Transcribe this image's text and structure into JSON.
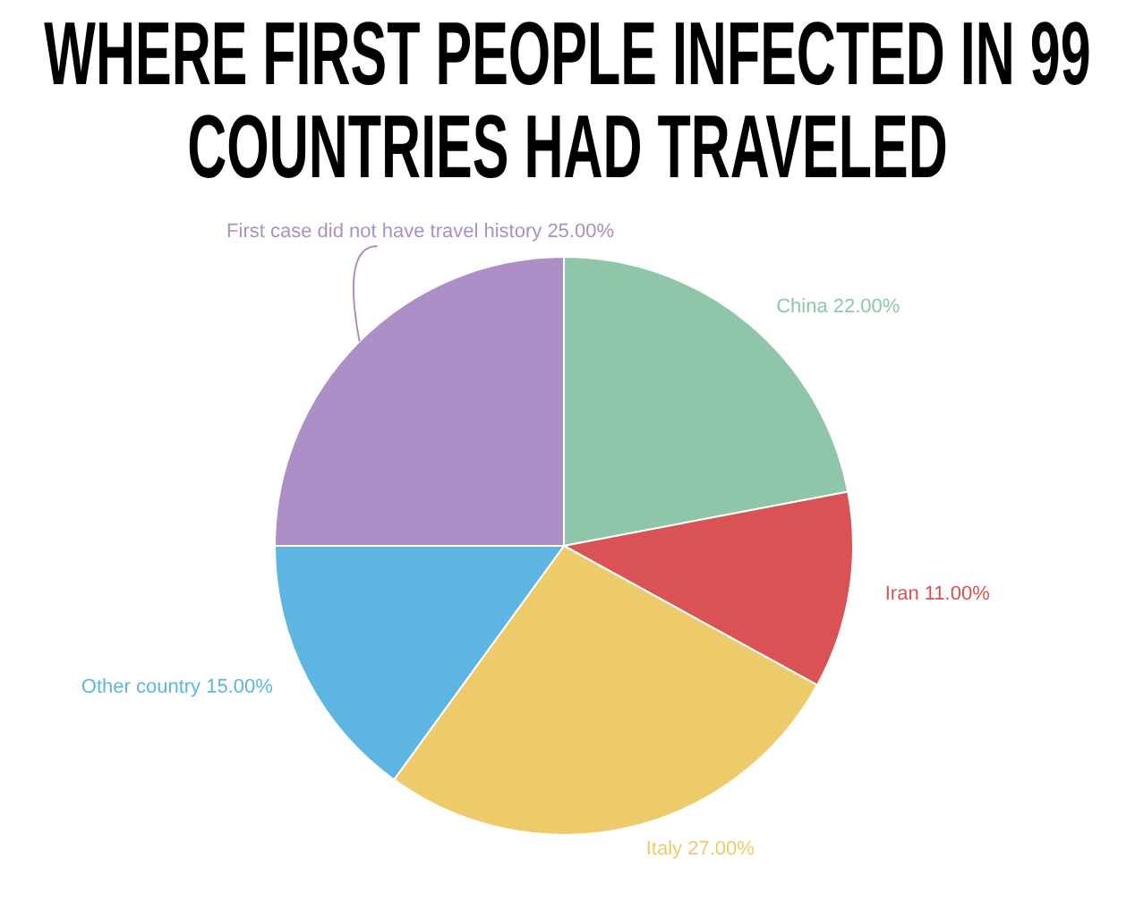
{
  "chart_data": {
    "type": "pie",
    "title": "WHERE FIRST PEOPLE INFECTED IN 99 COUNTRIES HAD TRAVELED",
    "categories": [
      "China",
      "Iran",
      "Italy",
      "Other country",
      "First case did not have travel history"
    ],
    "values": [
      22,
      11,
      27,
      15,
      25
    ],
    "value_labels": [
      "22.00%",
      "11.00%",
      "27.00%",
      "15.00%",
      "25.00%"
    ],
    "colors": [
      "#8fc5a8",
      "#d95355",
      "#eecb6a",
      "#5db5e2",
      "#ab8fc6"
    ],
    "legend": false
  }
}
